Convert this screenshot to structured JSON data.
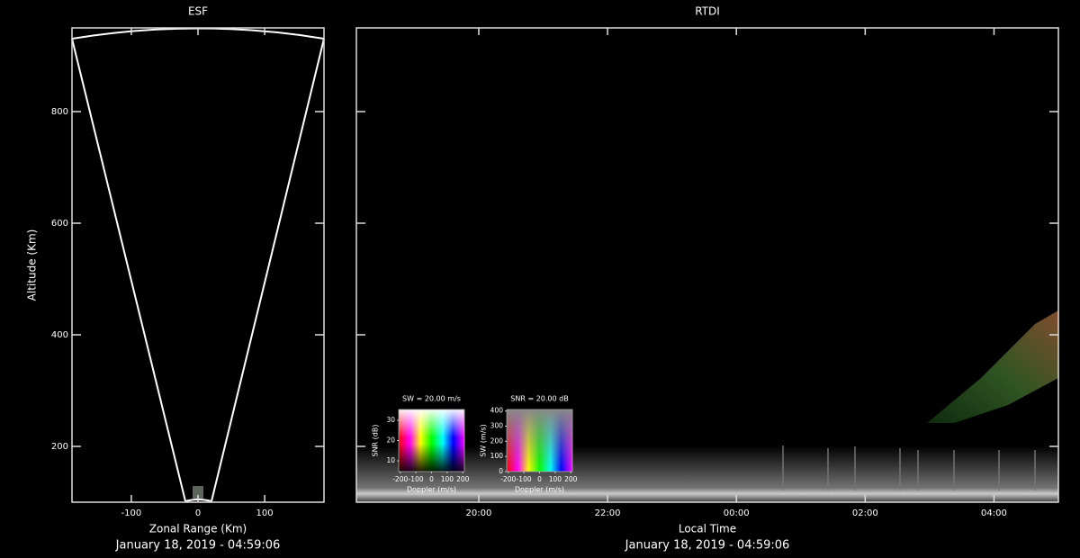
{
  "chart_data": [
    {
      "type": "sector",
      "title": "ESF",
      "x_label": "Zonal Range (Km)",
      "y_label": "Altitude (Km)",
      "footer": "January 18, 2019 - 04:59:06",
      "xlim": [
        -189,
        189
      ],
      "xticks": [
        -100,
        0,
        100
      ],
      "ylim": [
        100,
        950
      ],
      "yticks": [
        200,
        400,
        600,
        800
      ]
    },
    {
      "type": "heatmap",
      "title": "RTDI",
      "x_label": "Local Time",
      "footer": "January 18, 2019 - 04:59:06",
      "xlim": [
        18.1,
        29.0
      ],
      "xticks": [
        {
          "value": 20,
          "label": "20:00"
        },
        {
          "value": 22,
          "label": "22:00"
        },
        {
          "value": 24,
          "label": "00:00"
        },
        {
          "value": 26,
          "label": "02:00"
        },
        {
          "value": 28,
          "label": "04:00"
        }
      ],
      "ylim": [
        100,
        950
      ],
      "yticks": [
        200,
        400,
        600,
        800
      ],
      "legends": [
        {
          "title": "SW = 20.00 m/s",
          "x_label": "Doppler (m/s)",
          "y_label": "SNR (dB)",
          "xlim": [
            -210,
            210
          ],
          "xticks": [
            -200,
            -100,
            0,
            100,
            200
          ],
          "ylim": [
            4.7,
            35.3
          ],
          "yticks": [
            10,
            20,
            30
          ]
        },
        {
          "title": "SNR = 20.00 dB",
          "x_label": "Doppler (m/s)",
          "y_label": "SW (m/s)",
          "xlim": [
            -210,
            210
          ],
          "xticks": [
            -200,
            -100,
            0,
            100,
            200
          ],
          "ylim": [
            0,
            410
          ],
          "yticks": [
            0,
            100,
            200,
            300,
            400
          ]
        }
      ]
    }
  ]
}
